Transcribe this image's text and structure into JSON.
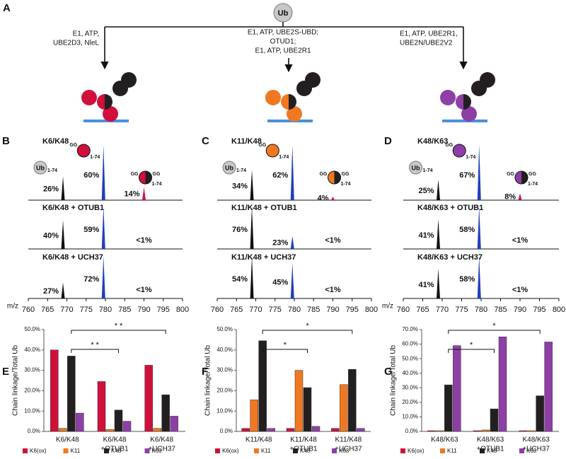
{
  "panel_a": {
    "letter": "A",
    "ub": "Ub",
    "routes": [
      {
        "color": "#d0103a",
        "lines": [
          "E1, ATP,",
          "UBE2D3, NleL"
        ]
      },
      {
        "color": "#f07820",
        "lines": [
          "E1, ATP, UBE2S-UBD;",
          "OTUD1;",
          "E1, ATP, UBE2R1"
        ]
      },
      {
        "color": "#8e3fa6",
        "lines": [
          "E1, ATP, UBE2R1,",
          "UBE2N/UBE2V2"
        ]
      }
    ]
  },
  "labels": {
    "ub": "Ub",
    "range": "1-74",
    "gg": "GG",
    "mz": "m/z"
  },
  "spectra": [
    {
      "letter": "B",
      "color": "#d0103a",
      "xlim": [
        760,
        800
      ],
      "xticks": [
        760,
        765,
        770,
        775,
        780,
        785,
        790,
        795,
        800
      ],
      "rows": [
        {
          "title": "K6/K48",
          "peaks": [
            {
              "mz": 769,
              "value": 26,
              "label": "26%"
            },
            {
              "mz": 779.5,
              "value": 60,
              "label": "60%"
            },
            {
              "mz": 790,
              "value": 14,
              "label": "14%"
            }
          ]
        },
        {
          "title": "K6/K48 + OTUB1",
          "peaks": [
            {
              "mz": 769,
              "value": 40,
              "label": "40%"
            },
            {
              "mz": 779.5,
              "value": 59,
              "label": "59%"
            },
            {
              "mz": 790,
              "value": null,
              "label": "<1%"
            }
          ]
        },
        {
          "title": "K6/K48 + UCH37",
          "peaks": [
            {
              "mz": 769,
              "value": 27,
              "label": "27%"
            },
            {
              "mz": 779.5,
              "value": 72,
              "label": "72%"
            },
            {
              "mz": 790,
              "value": null,
              "label": "<1%"
            }
          ]
        }
      ]
    },
    {
      "letter": "C",
      "color": "#f07820",
      "xlim": [
        760,
        800
      ],
      "xticks": [
        760,
        765,
        770,
        775,
        780,
        785,
        790,
        795,
        800
      ],
      "rows": [
        {
          "title": "K11/K48",
          "peaks": [
            {
              "mz": 769,
              "value": 34,
              "label": "34%"
            },
            {
              "mz": 779.5,
              "value": 62,
              "label": "62%"
            },
            {
              "mz": 790,
              "value": 4,
              "label": "4%"
            }
          ]
        },
        {
          "title": "K11/K48 + OTUB1",
          "peaks": [
            {
              "mz": 769,
              "value": 76,
              "label": "76%"
            },
            {
              "mz": 779.5,
              "value": 23,
              "label": "23%"
            },
            {
              "mz": 790,
              "value": null,
              "label": "<1%"
            }
          ]
        },
        {
          "title": "K11/K48 + UCH37",
          "peaks": [
            {
              "mz": 769,
              "value": 54,
              "label": "54%"
            },
            {
              "mz": 779.5,
              "value": 45,
              "label": "45%"
            },
            {
              "mz": 790,
              "value": null,
              "label": "<1%"
            }
          ]
        }
      ]
    },
    {
      "letter": "D",
      "color": "#8e3fa6",
      "xlim": [
        760,
        800
      ],
      "xticks": [
        760,
        765,
        770,
        775,
        780,
        785,
        790,
        795,
        800
      ],
      "rows": [
        {
          "title": "K48/K63",
          "peaks": [
            {
              "mz": 769,
              "value": 25,
              "label": "25%"
            },
            {
              "mz": 779.5,
              "value": 67,
              "label": "67%"
            },
            {
              "mz": 790,
              "value": 8,
              "label": "8%"
            }
          ]
        },
        {
          "title": "K48/K63 + OTUB1",
          "peaks": [
            {
              "mz": 769,
              "value": 41,
              "label": "41%"
            },
            {
              "mz": 779.5,
              "value": 58,
              "label": "58%"
            },
            {
              "mz": 790,
              "value": null,
              "label": "<1%"
            }
          ]
        },
        {
          "title": "K48/K63 + UCH37",
          "peaks": [
            {
              "mz": 769,
              "value": 41,
              "label": "41%"
            },
            {
              "mz": 779.5,
              "value": 58,
              "label": "58%"
            },
            {
              "mz": 790,
              "value": null,
              "label": "<1%"
            }
          ]
        }
      ]
    }
  ],
  "bar_charts": [
    {
      "letter": "E",
      "type": "bar",
      "ylabel": "Chain linkage/Total Ub",
      "ylim": [
        0,
        50
      ],
      "yticks": [
        {
          "value": 0,
          "label": "0.0%"
        },
        {
          "value": 10,
          "label": "10.0%"
        },
        {
          "value": 20,
          "label": "20.0%"
        },
        {
          "value": 30,
          "label": "30.0%"
        },
        {
          "value": 40,
          "label": "40.0%"
        },
        {
          "value": 50,
          "label": "50.0%"
        }
      ],
      "categories": [
        [
          "K6/K48"
        ],
        [
          "K6/K48",
          "+OTUB1"
        ],
        [
          "K6/K48",
          "+UCH37"
        ]
      ],
      "series": [
        {
          "name": "K6(ox)",
          "color": "#d0103a",
          "values": [
            40,
            24.5,
            32.5
          ]
        },
        {
          "name": "K11",
          "color": "#f07820",
          "values": [
            1.5,
            1,
            1.5
          ]
        },
        {
          "name": "K48",
          "color": "#231f20",
          "values": [
            37,
            10.5,
            18
          ]
        },
        {
          "name": "K63",
          "color": "#8e3fa6",
          "values": [
            9,
            5,
            7.5
          ]
        }
      ],
      "significance": [
        {
          "label": "* *"
        },
        {
          "label": "* *"
        }
      ]
    },
    {
      "letter": "F",
      "type": "bar",
      "ylabel": "Chain linkage/Total Ub",
      "ylim": [
        0,
        50
      ],
      "yticks": [
        {
          "value": 0,
          "label": "0.0%"
        },
        {
          "value": 10,
          "label": "10.0%"
        },
        {
          "value": 20,
          "label": "20.0%"
        },
        {
          "value": 30,
          "label": "30.0%"
        },
        {
          "value": 40,
          "label": "40.0%"
        },
        {
          "value": 50,
          "label": "50.0%"
        }
      ],
      "categories": [
        [
          "K11/K48"
        ],
        [
          "K11/K48",
          "+OTUB1"
        ],
        [
          "K11/K48",
          "+UCH37"
        ]
      ],
      "series": [
        {
          "name": "K6(ox)",
          "color": "#d0103a",
          "values": [
            1.5,
            1.5,
            1.5
          ]
        },
        {
          "name": "K11",
          "color": "#f07820",
          "values": [
            15.5,
            30,
            23
          ]
        },
        {
          "name": "K48",
          "color": "#231f20",
          "values": [
            44.5,
            21.5,
            30.5
          ]
        },
        {
          "name": "K63",
          "color": "#8e3fa6",
          "values": [
            1.5,
            2.5,
            1.5
          ]
        }
      ],
      "significance": [
        {
          "label": "*"
        },
        {
          "label": "*"
        }
      ]
    },
    {
      "letter": "G",
      "type": "bar",
      "ylabel": "Chain linkage/Total Ub",
      "ylim": [
        0,
        70
      ],
      "yticks": [
        {
          "value": 0,
          "label": "0.0%"
        },
        {
          "value": 10,
          "label": "10.0%"
        },
        {
          "value": 20,
          "label": "20.0%"
        },
        {
          "value": 30,
          "label": "30.0%"
        },
        {
          "value": 40,
          "label": "40.0%"
        },
        {
          "value": 50,
          "label": "50.0%"
        },
        {
          "value": 60,
          "label": "60.0%"
        },
        {
          "value": 70,
          "label": "70.0%"
        }
      ],
      "categories": [
        [
          "K48/K63"
        ],
        [
          "K48/K63",
          "+OTUB1"
        ],
        [
          "K48/K63",
          "+UCH37"
        ]
      ],
      "series": [
        {
          "name": "K6(ox)",
          "color": "#d0103a",
          "values": [
            0.5,
            0.5,
            0.5
          ]
        },
        {
          "name": "K11",
          "color": "#f07820",
          "values": [
            0.5,
            1,
            0.5
          ]
        },
        {
          "name": "K48",
          "color": "#231f20",
          "values": [
            32,
            15.5,
            24.5
          ]
        },
        {
          "name": "K63",
          "color": "#8e3fa6",
          "values": [
            59,
            65,
            61.5
          ]
        }
      ],
      "significance": [
        {
          "label": "*"
        },
        {
          "label": "*"
        }
      ]
    }
  ]
}
